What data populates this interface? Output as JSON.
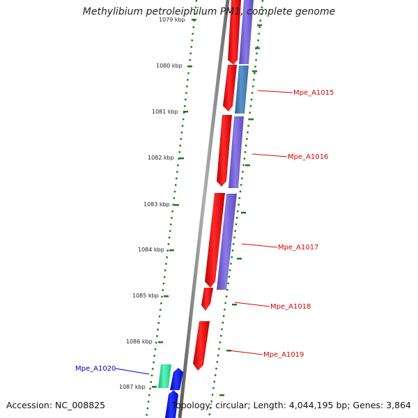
{
  "title": "Methylibium petroleiphilum PM1, complete genome",
  "accession": "Accession: NC_008825",
  "summary": "Topology: circular; Length: 4,044,195 bp; Genes: 3,864",
  "ticks": [
    "1079 kbp",
    "1080 kbp",
    "1081 kbp",
    "1082 kbp",
    "1083 kbp",
    "1084 kbp",
    "1085 kbp",
    "1086 kbp",
    "1087 kbp"
  ],
  "genes": [
    {
      "label": "Mpe_A1015",
      "color": "#dd0000"
    },
    {
      "label": "Mpe_A1016",
      "color": "#dd0000"
    },
    {
      "label": "Mpe_A1017",
      "color": "#dd0000"
    },
    {
      "label": "Mpe_A1018",
      "color": "#dd0000"
    },
    {
      "label": "Mpe_A1019",
      "color": "#dd0000"
    },
    {
      "label": "Mpe_A1020",
      "color": "#0000cc"
    }
  ],
  "colors": {
    "cds_forward": "#ff1a1a",
    "cds_reverse": "#0a14f0",
    "feature_purple": "#7b68d8",
    "feature_blue": "#4a7fb8",
    "feature_teal": "#2ee8a0",
    "tick_green": "#1a7a1a",
    "backbone": "#777777"
  }
}
